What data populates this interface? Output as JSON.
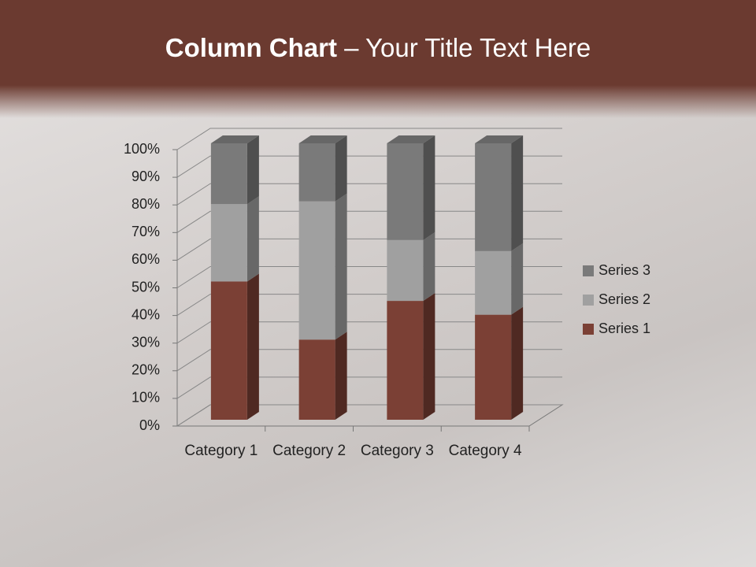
{
  "chart_data": {
    "type": "stacked_column_3d",
    "title_parts": [
      "Column Chart",
      "– Your Title Text Here"
    ],
    "categories": [
      "Category 1",
      "Category 2",
      "Category 3",
      "Category 4"
    ],
    "series": [
      {
        "name": "Series 1",
        "color": "#7b4035",
        "values": [
          50,
          29,
          43,
          38
        ]
      },
      {
        "name": "Series 2",
        "color": "#a0a0a0",
        "values": [
          28,
          50,
          22,
          23
        ]
      },
      {
        "name": "Series 3",
        "color": "#7a7a7a",
        "values": [
          22,
          21,
          35,
          39
        ]
      }
    ],
    "ylim": [
      0,
      100
    ],
    "yticks": [
      {
        "value": 0,
        "label": "0%"
      },
      {
        "value": 10,
        "label": "10%"
      },
      {
        "value": 20,
        "label": "20%"
      },
      {
        "value": 30,
        "label": "30%"
      },
      {
        "value": 40,
        "label": "40%"
      },
      {
        "value": 50,
        "label": "50%"
      },
      {
        "value": 60,
        "label": "60%"
      },
      {
        "value": 70,
        "label": "70%"
      },
      {
        "value": 80,
        "label": "80%"
      },
      {
        "value": 90,
        "label": "90%"
      },
      {
        "value": 100,
        "label": "100%"
      }
    ],
    "grid": true,
    "legend": "right"
  }
}
